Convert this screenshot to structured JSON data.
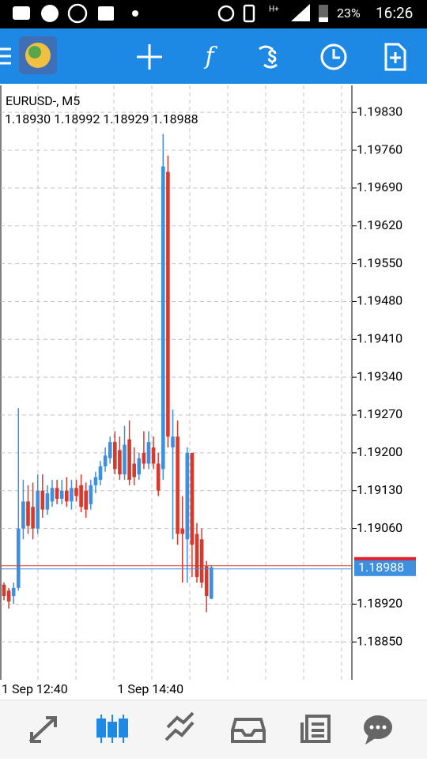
{
  "status_bar": {
    "network": "H+",
    "battery": "23%",
    "time": "16:26"
  },
  "chart_data": {
    "type": "candlestick",
    "title": "EURUSD-, M5",
    "subtitle": "1.18930 1.18992 1.18929 1.18988",
    "categories": [
      "1 Sep 12:40",
      null,
      null,
      null,
      null,
      null,
      null,
      null,
      null,
      null,
      null,
      null,
      null,
      null,
      null,
      null,
      null,
      null,
      null,
      null,
      null,
      null,
      null,
      null,
      "1 Sep 14:40",
      null,
      null,
      null,
      null,
      null,
      null,
      null,
      null,
      null,
      null,
      null,
      null,
      null,
      null,
      null,
      null,
      null,
      null,
      null
    ],
    "series": [
      {
        "up_color": "#3d8fe0",
        "down_color": "#d8392c",
        "open": [
          1.18956,
          1.18945,
          1.18935,
          1.1895,
          1.1906,
          1.1911,
          1.191,
          1.1906,
          1.1913,
          1.19095,
          1.1911,
          1.19135,
          1.19115,
          1.1913,
          1.1911,
          1.19135,
          1.1914,
          1.1913,
          1.19105,
          1.1914,
          1.1915,
          1.19175,
          1.1919,
          1.1922,
          1.19205,
          1.1916,
          1.19225,
          1.1918,
          1.1916,
          1.192,
          1.1918,
          1.1921,
          1.1918,
          1.1917,
          1.1972,
          1.1921,
          1.1923,
          1.1906,
          1.1904,
          1.192,
          1.1905,
          1.1904,
          1.1899,
          1.1893
        ],
        "high": [
          1.1896,
          1.1895,
          1.1896,
          1.19283,
          1.1915,
          1.1914,
          1.19145,
          1.1916,
          1.1916,
          1.1914,
          1.1915,
          1.1915,
          1.1915,
          1.19155,
          1.1915,
          1.1915,
          1.1916,
          1.19145,
          1.1915,
          1.19165,
          1.19185,
          1.1921,
          1.1923,
          1.1924,
          1.1923,
          1.1925,
          1.1926,
          1.1921,
          1.192,
          1.1924,
          1.1924,
          1.1923,
          1.192,
          1.1979,
          1.1975,
          1.1928,
          1.1926,
          1.1912,
          1.1921,
          1.192,
          1.1907,
          1.1906,
          1.19,
          1.18992
        ],
        "low": [
          1.18927,
          1.18912,
          1.1892,
          1.18945,
          1.1904,
          1.1905,
          1.1904,
          1.1905,
          1.1908,
          1.19085,
          1.191,
          1.19105,
          1.19105,
          1.191,
          1.19095,
          1.1911,
          1.1909,
          1.1908,
          1.19095,
          1.19125,
          1.1914,
          1.19165,
          1.1918,
          1.1916,
          1.1915,
          1.1915,
          1.1914,
          1.1914,
          1.1915,
          1.1917,
          1.1917,
          1.1917,
          1.1912,
          1.1915,
          1.1921,
          1.1904,
          1.1903,
          1.1896,
          1.1896,
          1.1897,
          1.1896,
          1.1895,
          1.18905,
          1.18929
        ],
        "close": [
          1.18935,
          1.18925,
          1.1895,
          1.1906,
          1.1911,
          1.19065,
          1.1906,
          1.1913,
          1.19095,
          1.19125,
          1.19135,
          1.19115,
          1.1913,
          1.1911,
          1.19135,
          1.1912,
          1.191,
          1.19095,
          1.1914,
          1.19155,
          1.19175,
          1.19195,
          1.1922,
          1.1917,
          1.1916,
          1.19215,
          1.1915,
          1.19155,
          1.1919,
          1.1918,
          1.1922,
          1.1918,
          1.1913,
          1.1973,
          1.1923,
          1.1923,
          1.1905,
          1.1905,
          1.192,
          1.1903,
          1.1897,
          1.1896,
          1.18935,
          1.18988
        ]
      }
    ],
    "current_price": {
      "value": 1.18988,
      "label": "1.18988"
    },
    "ylim": [
      1.1878,
      1.1988
    ],
    "yticks": [
      {
        "value": 1.1983,
        "label": "1.19830"
      },
      {
        "value": 1.1976,
        "label": "1.19760"
      },
      {
        "value": 1.1969,
        "label": "1.19690"
      },
      {
        "value": 1.1962,
        "label": "1.19620"
      },
      {
        "value": 1.1955,
        "label": "1.19550"
      },
      {
        "value": 1.1948,
        "label": "1.19480"
      },
      {
        "value": 1.1941,
        "label": "1.19410"
      },
      {
        "value": 1.1934,
        "label": "1.19340"
      },
      {
        "value": 1.1927,
        "label": "1.19270"
      },
      {
        "value": 1.192,
        "label": "1.19200"
      },
      {
        "value": 1.1913,
        "label": "1.19130"
      },
      {
        "value": 1.1906,
        "label": "1.19060"
      },
      {
        "value": 1.1892,
        "label": "1.18920"
      },
      {
        "value": 1.1885,
        "label": "1.18850"
      }
    ],
    "grid": true
  }
}
